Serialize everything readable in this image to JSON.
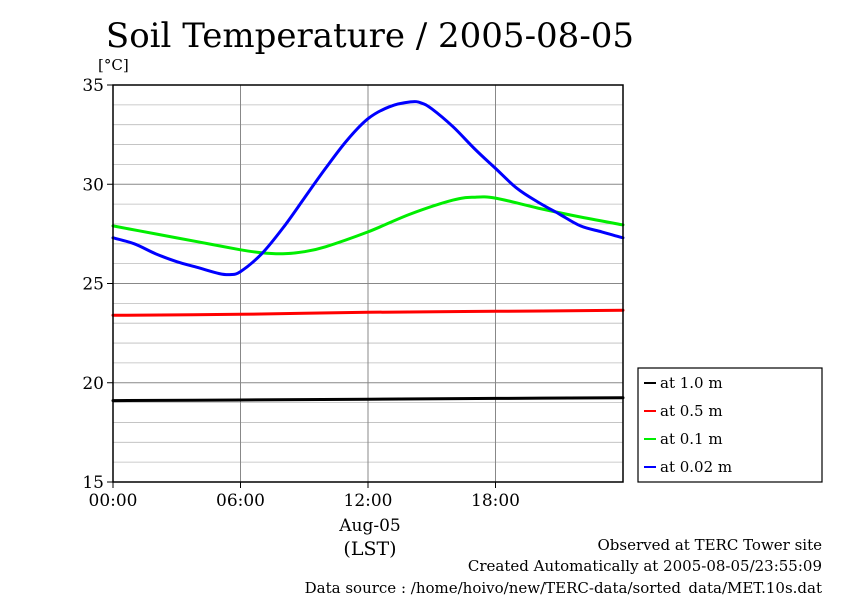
{
  "chart_data": {
    "type": "line",
    "title": "Soil Temperature / 2005-08-05",
    "unit": "[°C]",
    "xlabel": "(LST)",
    "date_label": "Aug-05",
    "ylim": [
      15,
      35
    ],
    "yticks": [
      "15",
      "20",
      "25",
      "30",
      "35"
    ],
    "y_minor_step": 1,
    "xlim": [
      0,
      24
    ],
    "xticks": [
      {
        "x": 0,
        "label": "00:00"
      },
      {
        "x": 6,
        "label": "06:00"
      },
      {
        "x": 12,
        "label": "12:00"
      },
      {
        "x": 18,
        "label": "18:00"
      }
    ],
    "grid": true,
    "legend_position": "right",
    "series": [
      {
        "name": "at 1.0 m",
        "color": "#000000",
        "x": [
          0,
          6,
          12,
          18,
          24
        ],
        "y": [
          19.1,
          19.13,
          19.17,
          19.21,
          19.24
        ]
      },
      {
        "name": "at 0.5 m",
        "color": "#ff0000",
        "x": [
          0,
          6,
          12,
          18,
          24
        ],
        "y": [
          23.4,
          23.45,
          23.55,
          23.6,
          23.65
        ]
      },
      {
        "name": "at 0.1 m",
        "color": "#00ee00",
        "x": [
          0,
          2,
          4,
          6,
          7,
          8,
          9,
          10,
          12,
          14,
          16,
          17,
          18,
          20,
          22,
          24
        ],
        "y": [
          27.9,
          27.5,
          27.1,
          26.7,
          26.55,
          26.5,
          26.6,
          26.85,
          27.6,
          28.5,
          29.2,
          29.35,
          29.3,
          28.8,
          28.35,
          27.95
        ]
      },
      {
        "name": "at 0.02 m",
        "color": "#0000ff",
        "x": [
          0,
          1,
          2,
          3,
          4,
          5,
          5.5,
          6,
          7,
          8,
          9,
          10,
          11,
          12,
          13,
          14,
          14.5,
          15,
          16,
          17,
          18,
          19,
          20,
          21,
          22,
          23,
          24
        ],
        "y": [
          27.3,
          27.0,
          26.5,
          26.1,
          25.8,
          25.5,
          25.45,
          25.6,
          26.5,
          27.8,
          29.3,
          30.8,
          32.2,
          33.3,
          33.9,
          34.15,
          34.1,
          33.8,
          32.9,
          31.8,
          30.8,
          29.8,
          29.1,
          28.5,
          27.9,
          27.6,
          27.3
        ]
      }
    ]
  },
  "footer": {
    "line1": "Observed at TERC Tower site",
    "line2": "Created Automatically at 2005-08-05/23:55:09",
    "line3": "Data source : /home/hoivo/new/TERC-data/sorted_data/MET.10s.dat"
  }
}
